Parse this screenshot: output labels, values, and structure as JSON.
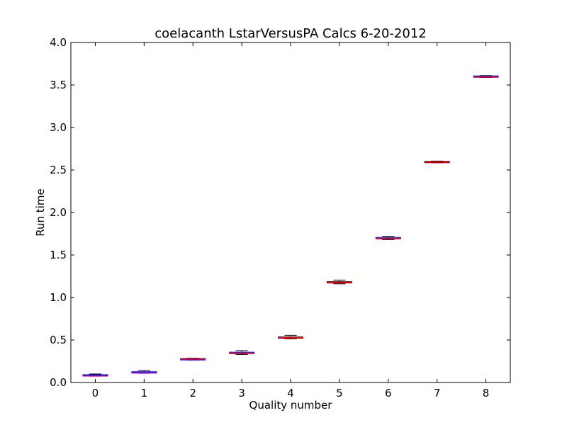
{
  "chart_data": {
    "type": "box",
    "title": "coelacanth LstarVersusPA Calcs 6-20-2012",
    "xlabel": "Quality number",
    "ylabel": "Run time",
    "xlim": [
      -0.5,
      8.5
    ],
    "ylim": [
      0.0,
      4.0
    ],
    "x_ticks": [
      "0",
      "1",
      "2",
      "3",
      "4",
      "5",
      "6",
      "7",
      "8"
    ],
    "y_ticks": [
      "0.0",
      "0.5",
      "1.0",
      "1.5",
      "2.0",
      "2.5",
      "3.0",
      "3.5",
      "4.0"
    ],
    "grid": false,
    "box_color": "#0000ff",
    "median_color": "#ff0000",
    "whisker_color": "#0000ff",
    "boxes": [
      {
        "x": 0,
        "min": 0.075,
        "q1": 0.08,
        "median": 0.085,
        "q3": 0.09,
        "max": 0.1
      },
      {
        "x": 1,
        "min": 0.11,
        "q1": 0.115,
        "median": 0.12,
        "q3": 0.125,
        "max": 0.14
      },
      {
        "x": 2,
        "min": 0.265,
        "q1": 0.27,
        "median": 0.275,
        "q3": 0.28,
        "max": 0.285
      },
      {
        "x": 3,
        "min": 0.33,
        "q1": 0.345,
        "median": 0.35,
        "q3": 0.355,
        "max": 0.375
      },
      {
        "x": 4,
        "min": 0.515,
        "q1": 0.525,
        "median": 0.53,
        "q3": 0.535,
        "max": 0.555
      },
      {
        "x": 5,
        "min": 1.16,
        "q1": 1.175,
        "median": 1.18,
        "q3": 1.185,
        "max": 1.205
      },
      {
        "x": 6,
        "min": 1.68,
        "q1": 1.695,
        "median": 1.7,
        "q3": 1.705,
        "max": 1.72
      },
      {
        "x": 7,
        "min": 2.585,
        "q1": 2.59,
        "median": 2.595,
        "q3": 2.6,
        "max": 2.605
      },
      {
        "x": 8,
        "min": 3.59,
        "q1": 3.595,
        "median": 3.6,
        "q3": 3.605,
        "max": 3.61
      }
    ]
  }
}
